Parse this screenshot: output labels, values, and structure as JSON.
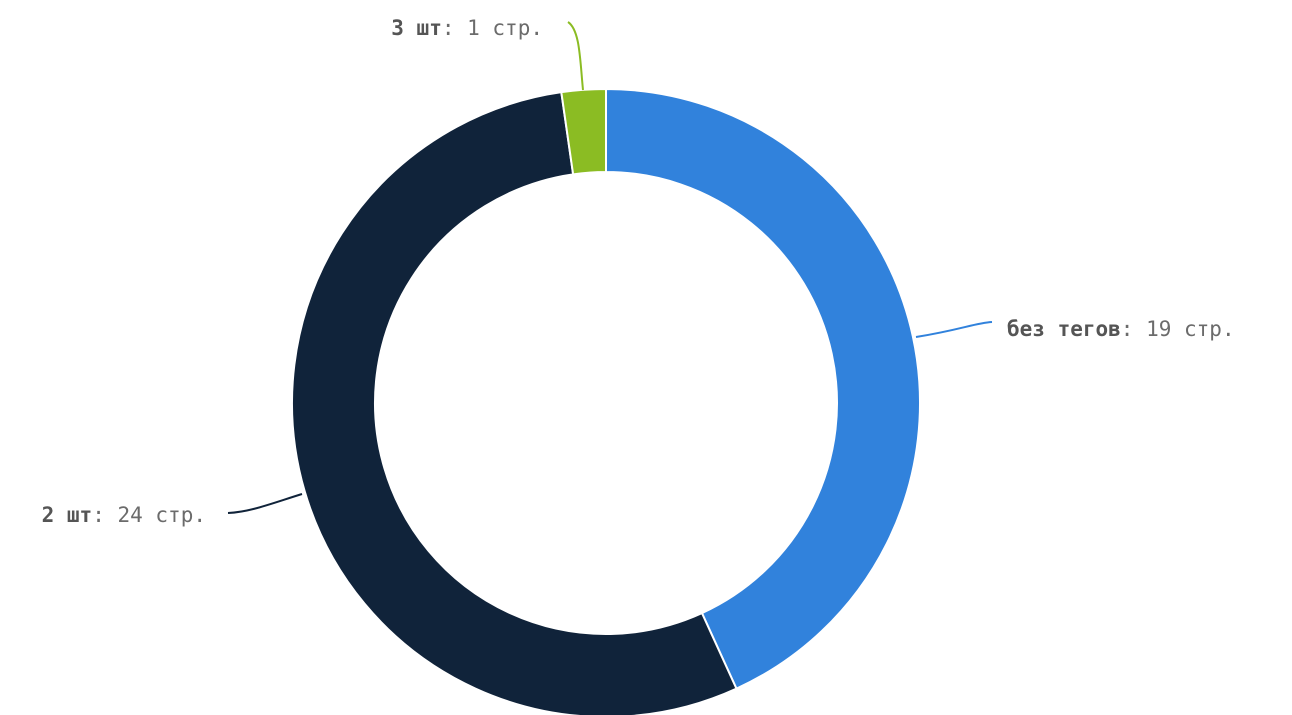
{
  "chart_data": {
    "type": "pie",
    "donut": true,
    "legend": "none",
    "unit": "стр.",
    "slices": [
      {
        "label": "без тегов",
        "value": 19,
        "color": "#3182dc"
      },
      {
        "label": "2 шт",
        "value": 24,
        "color": "#10233a"
      },
      {
        "label": "3 шт",
        "value": 1,
        "color": "#8bbc23"
      }
    ]
  }
}
